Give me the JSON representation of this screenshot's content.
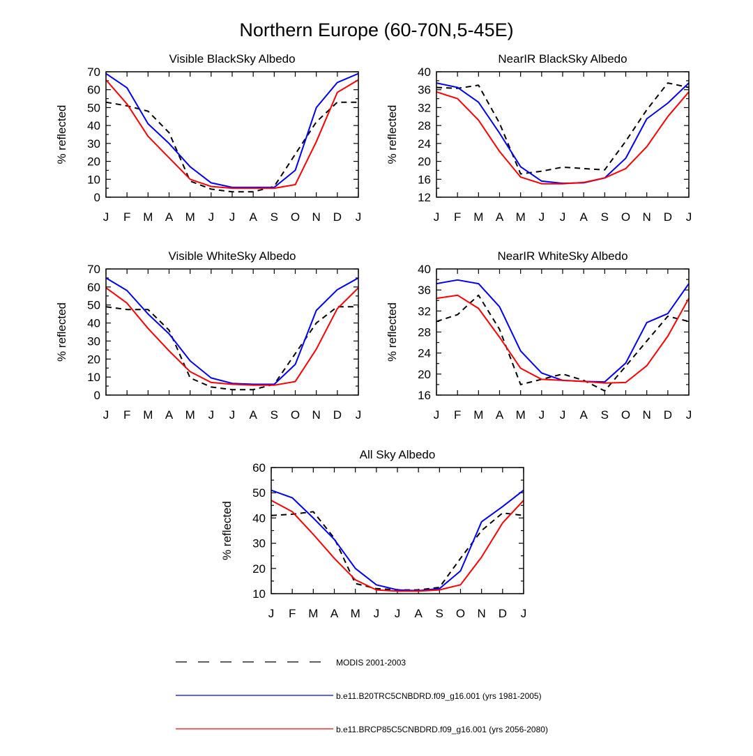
{
  "figure_title": "Northern Europe (60-70N,5-45E)",
  "colors": {
    "modis": "#000000",
    "b20": "#0000ff",
    "brcp85": "#ff0000"
  },
  "legend": [
    {
      "label": "MODIS 2001-2003",
      "color": "#000000",
      "style": "dashed"
    },
    {
      "label": "b.e11.B20TRC5CNBDRD.f09_g16.001 (yrs 1981-2005)",
      "color": "#0000ff",
      "style": "solid"
    },
    {
      "label": "b.e11.BRCP85C5CNBDRD.f09_g16.001 (yrs 2056-2080)",
      "color": "#ff0000",
      "style": "solid"
    }
  ],
  "chart_data": [
    {
      "type": "line",
      "title": "Visible BlackSky Albedo",
      "ylabel": "% reflected",
      "categories": [
        "J",
        "F",
        "M",
        "A",
        "M",
        "J",
        "J",
        "A",
        "S",
        "O",
        "N",
        "D",
        "J"
      ],
      "ylim": [
        0,
        70
      ],
      "yticks": [
        0,
        10,
        20,
        30,
        40,
        50,
        60,
        70
      ],
      "series": [
        {
          "key": "modis",
          "values": [
            53,
            51,
            48,
            36,
            9,
            4.5,
            3,
            3,
            6,
            24,
            42,
            53,
            53
          ]
        },
        {
          "key": "b20",
          "values": [
            69,
            61,
            41,
            30,
            17,
            8,
            5.5,
            5.5,
            5.5,
            15,
            50,
            64,
            69
          ]
        },
        {
          "key": "brcp85",
          "values": [
            65.5,
            52,
            34,
            22,
            10,
            6,
            5,
            5,
            5,
            7,
            31,
            58.5,
            65.5
          ]
        }
      ]
    },
    {
      "type": "line",
      "title": "NearIR BlackSky Albedo",
      "ylabel": "% reflected",
      "categories": [
        "J",
        "F",
        "M",
        "A",
        "M",
        "J",
        "J",
        "A",
        "S",
        "O",
        "N",
        "D",
        "J"
      ],
      "ylim": [
        12,
        40
      ],
      "yticks": [
        12,
        16,
        20,
        24,
        28,
        32,
        36,
        40
      ],
      "series": [
        {
          "key": "modis",
          "values": [
            36.5,
            36.3,
            37,
            28.5,
            17.2,
            17.8,
            18.7,
            18.4,
            18.1,
            24.5,
            31.5,
            37.5,
            36.5
          ]
        },
        {
          "key": "b20",
          "values": [
            37.5,
            36.5,
            33.2,
            26.3,
            18.8,
            15.6,
            15.1,
            15.2,
            16.3,
            20.7,
            29.5,
            33,
            37.5
          ]
        },
        {
          "key": "brcp85",
          "values": [
            35.5,
            34,
            29.2,
            22.2,
            16.5,
            15,
            15,
            15.3,
            16.3,
            18.4,
            23.3,
            30,
            35.5
          ]
        }
      ]
    },
    {
      "type": "line",
      "title": "Visible WhiteSky Albedo",
      "ylabel": "% reflected",
      "categories": [
        "J",
        "F",
        "M",
        "A",
        "M",
        "J",
        "J",
        "A",
        "S",
        "O",
        "N",
        "D",
        "J"
      ],
      "ylim": [
        0,
        70
      ],
      "yticks": [
        0,
        10,
        20,
        30,
        40,
        50,
        60,
        70
      ],
      "series": [
        {
          "key": "modis",
          "values": [
            49,
            47.5,
            47.5,
            36,
            9.5,
            4.5,
            3,
            3,
            6,
            23,
            40,
            49,
            49
          ]
        },
        {
          "key": "b20",
          "values": [
            65,
            58,
            45,
            34,
            19,
            9.5,
            6.5,
            6,
            6,
            17,
            47,
            58.5,
            65
          ]
        },
        {
          "key": "brcp85",
          "values": [
            59.5,
            51,
            37,
            24.5,
            13,
            7,
            6,
            5.5,
            5.5,
            7.5,
            25.5,
            48,
            59.5
          ]
        }
      ]
    },
    {
      "type": "line",
      "title": "NearIR WhiteSky Albedo",
      "ylabel": "% reflected",
      "categories": [
        "J",
        "F",
        "M",
        "A",
        "M",
        "J",
        "J",
        "A",
        "S",
        "O",
        "N",
        "D",
        "J"
      ],
      "ylim": [
        16,
        40
      ],
      "yticks": [
        16,
        20,
        24,
        28,
        32,
        36,
        40
      ],
      "series": [
        {
          "key": "modis",
          "values": [
            30,
            31.3,
            35,
            28.5,
            18,
            19,
            20,
            18.8,
            16.8,
            21.5,
            26.3,
            31,
            30
          ]
        },
        {
          "key": "b20",
          "values": [
            37.2,
            37.9,
            37.2,
            32.8,
            24.4,
            20.2,
            18.8,
            18.6,
            18.5,
            22.1,
            29.8,
            31.5,
            37.2
          ]
        },
        {
          "key": "brcp85",
          "values": [
            34.4,
            35,
            32.5,
            27,
            21.1,
            19,
            18.8,
            18.6,
            18.3,
            18.4,
            21.6,
            27.2,
            34.4
          ]
        }
      ]
    },
    {
      "type": "line",
      "title": "All Sky Albedo",
      "ylabel": "% reflected",
      "categories": [
        "J",
        "F",
        "M",
        "A",
        "M",
        "J",
        "J",
        "A",
        "S",
        "O",
        "N",
        "D",
        "J"
      ],
      "ylim": [
        10,
        60
      ],
      "yticks": [
        10,
        20,
        30,
        40,
        50,
        60
      ],
      "series": [
        {
          "key": "modis",
          "values": [
            41,
            41.5,
            42.5,
            32,
            14,
            12,
            11.5,
            11.5,
            12.5,
            24,
            35,
            42,
            41
          ]
        },
        {
          "key": "b20",
          "values": [
            51,
            48,
            40,
            31.5,
            20,
            13.5,
            11.5,
            11.2,
            12,
            19,
            38.5,
            44.5,
            51
          ]
        },
        {
          "key": "brcp85",
          "values": [
            47,
            42.5,
            33.5,
            24,
            15.5,
            11.5,
            11,
            11,
            11.5,
            13.5,
            24.5,
            38,
            47
          ]
        }
      ]
    }
  ]
}
